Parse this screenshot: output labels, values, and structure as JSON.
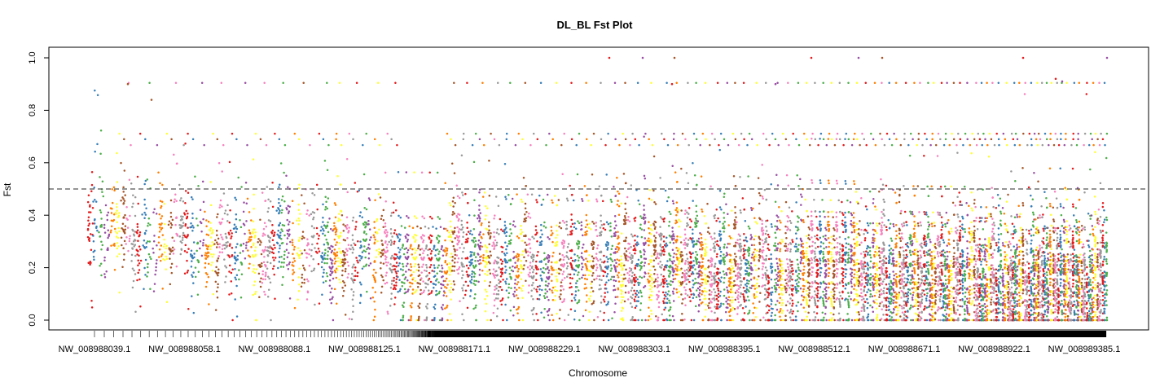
{
  "chart_data": {
    "type": "scatter",
    "title": "DL_BL Fst Plot",
    "xlabel": "Chromosome",
    "ylabel": "Fst",
    "ylim": [
      0,
      1.0
    ],
    "yticks": [
      "0.0",
      "0.2",
      "0.4",
      "0.6",
      "0.8",
      "1.0"
    ],
    "threshold": 0.5,
    "threshold_style": "dashed",
    "x_tick_labels": [
      "NW_008988039.1",
      "NW_008988058.1",
      "NW_008988088.1",
      "NW_008988125.1",
      "NW_008988171.1",
      "NW_008988229.1",
      "NW_008988303.1",
      "NW_008988395.1",
      "NW_008988512.1",
      "NW_008988671.1",
      "NW_008988922.1",
      "NW_008989385.1"
    ],
    "palette": [
      "#e41a1c",
      "#377eb8",
      "#4daf4a",
      "#984ea3",
      "#ff7f00",
      "#ffff33",
      "#a65628",
      "#f781bf",
      "#999999"
    ],
    "grid": false,
    "legend": "none"
  }
}
